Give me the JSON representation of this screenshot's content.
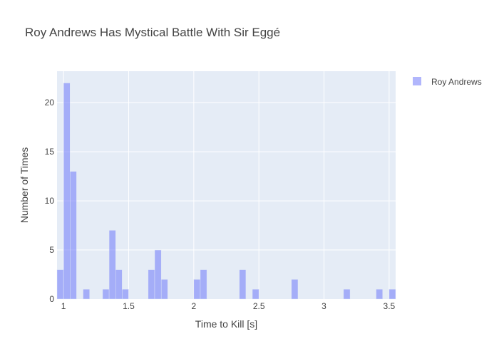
{
  "chart_data": {
    "type": "bar",
    "title": "Roy Andrews Has Mystical Battle With Sir Eggé",
    "xlabel": "Time to Kill [s]",
    "ylabel": "Number of Times",
    "xlim": [
      0.95,
      3.55
    ],
    "ylim": [
      0,
      23.2
    ],
    "bin_width": 0.05,
    "x_ticks": [
      1,
      1.5,
      2,
      2.5,
      3,
      3.5
    ],
    "x_tick_labels": [
      "1",
      "1.5",
      "2",
      "2.5",
      "3",
      "3.5"
    ],
    "y_ticks": [
      0,
      5,
      10,
      15,
      20
    ],
    "y_tick_labels": [
      "0",
      "5",
      "10",
      "15",
      "20"
    ],
    "grid": true,
    "legend_position": "top-right",
    "series": [
      {
        "name": "Roy Andrews",
        "color": "#636efa",
        "opacity": 0.5,
        "bins": [
          {
            "x0": 0.95,
            "x1": 1.0,
            "count": 3
          },
          {
            "x0": 1.0,
            "x1": 1.05,
            "count": 22
          },
          {
            "x0": 1.05,
            "x1": 1.1,
            "count": 13
          },
          {
            "x0": 1.15,
            "x1": 1.2,
            "count": 1
          },
          {
            "x0": 1.3,
            "x1": 1.35,
            "count": 1
          },
          {
            "x0": 1.35,
            "x1": 1.4,
            "count": 7
          },
          {
            "x0": 1.4,
            "x1": 1.45,
            "count": 3
          },
          {
            "x0": 1.45,
            "x1": 1.5,
            "count": 1
          },
          {
            "x0": 1.65,
            "x1": 1.7,
            "count": 3
          },
          {
            "x0": 1.7,
            "x1": 1.75,
            "count": 5
          },
          {
            "x0": 1.75,
            "x1": 1.8,
            "count": 2
          },
          {
            "x0": 2.0,
            "x1": 2.05,
            "count": 2
          },
          {
            "x0": 2.05,
            "x1": 2.1,
            "count": 3
          },
          {
            "x0": 2.35,
            "x1": 2.4,
            "count": 3
          },
          {
            "x0": 2.45,
            "x1": 2.5,
            "count": 1
          },
          {
            "x0": 2.75,
            "x1": 2.8,
            "count": 2
          },
          {
            "x0": 3.15,
            "x1": 3.2,
            "count": 1
          },
          {
            "x0": 3.4,
            "x1": 3.45,
            "count": 1
          },
          {
            "x0": 3.5,
            "x1": 3.55,
            "count": 1
          }
        ]
      }
    ]
  }
}
